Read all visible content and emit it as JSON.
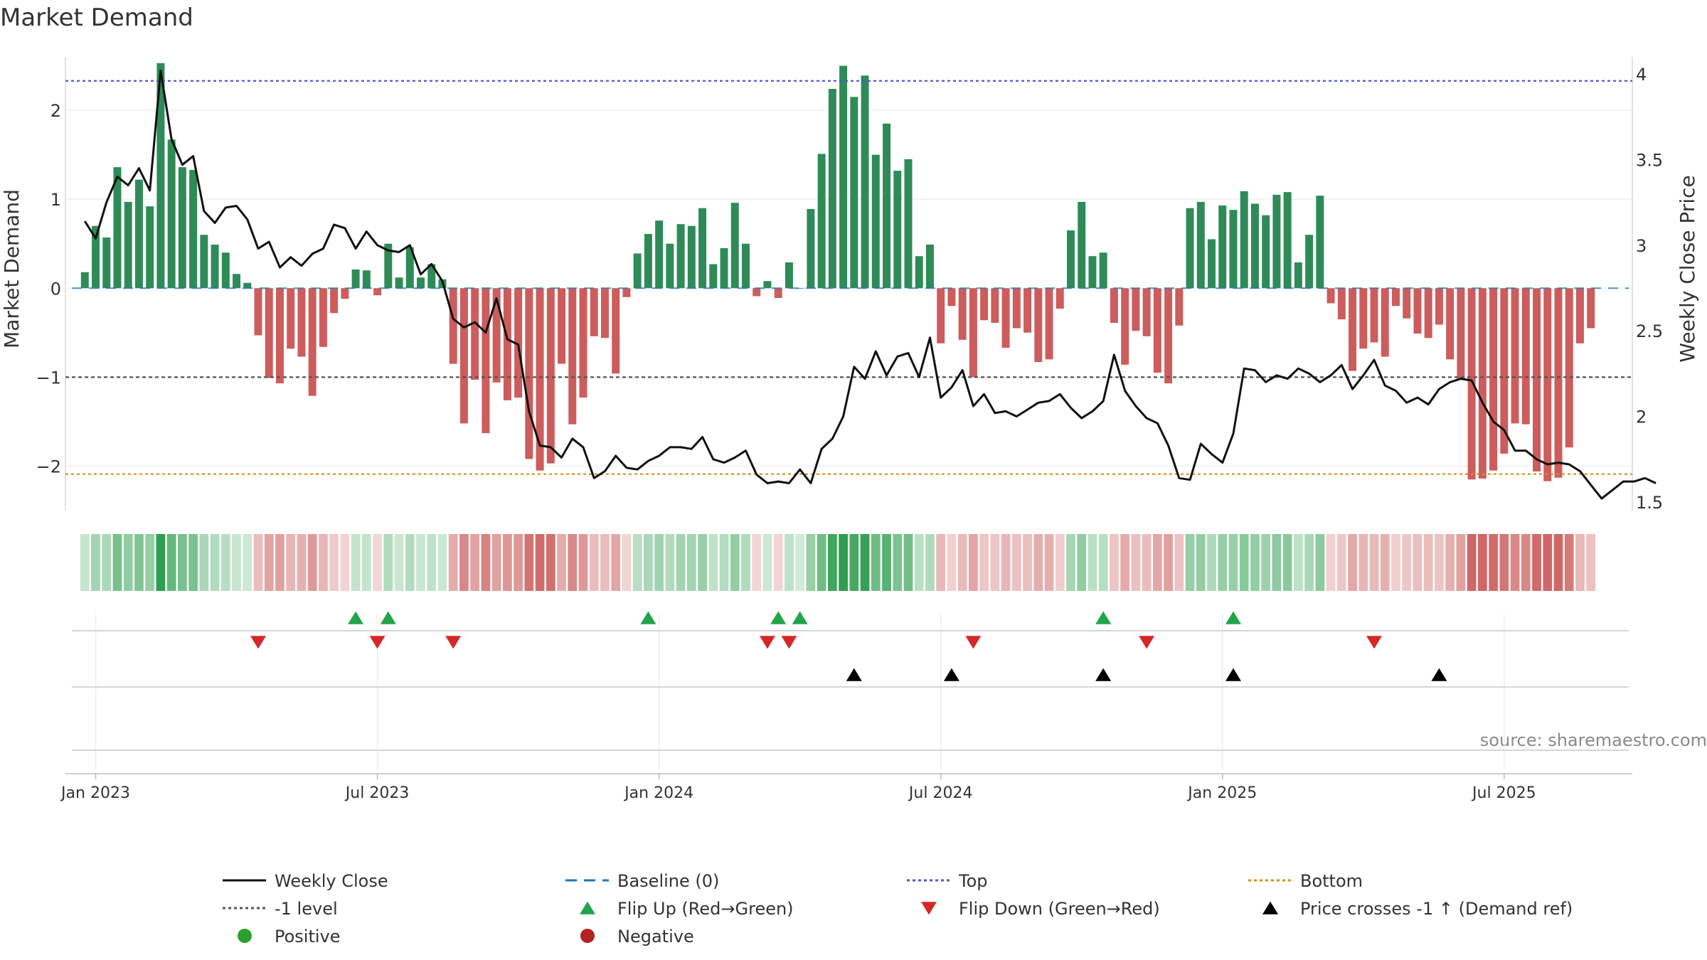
{
  "chart_data": {
    "type": "bar",
    "title": "Market Demand",
    "ylabel_left": "Market Demand",
    "ylabel_right": "Weekly Close Price",
    "left_ylim": [
      -2.5,
      2.6
    ],
    "left_yticks": [
      2,
      1,
      0,
      -1,
      -2
    ],
    "left_ytick_labels": [
      "2",
      "1",
      "0",
      "−1",
      "−2"
    ],
    "right_ylim": [
      1.45,
      4.1
    ],
    "right_yticks": [
      4,
      3.5,
      3,
      2.5,
      2,
      1.5
    ],
    "right_ytick_labels": [
      "4",
      "3.5",
      "3",
      "2.5",
      "2",
      "1.5"
    ],
    "x_ticks": [
      {
        "label": "Jan 2023",
        "week": 1
      },
      {
        "label": "Jul 2023",
        "week": 27
      },
      {
        "label": "Jan 2024",
        "week": 53
      },
      {
        "label": "Jul 2024",
        "week": 79
      },
      {
        "label": "Jan 2025",
        "week": 105
      },
      {
        "label": "Jul 2025",
        "week": 131
      }
    ],
    "x_range": [
      -1.2,
      142.5
    ],
    "reference_lines": {
      "top": 2.33,
      "bottom": -2.09,
      "level": -1,
      "baseline": 0
    },
    "colors": {
      "positive": "#2e8b57",
      "negative": "#cd5c5c",
      "close": "#111111",
      "top": "#5555cc",
      "bottom": "#d4901a",
      "level": "#555555",
      "baseline": "#1f77b4",
      "flip_up": "#22a44a",
      "flip_down": "#d62728",
      "cross": "#000000",
      "positive_dot": "#2ca02c",
      "negative_dot": "#b22222"
    },
    "demand": [
      0.18,
      0.7,
      0.57,
      1.36,
      0.97,
      1.22,
      0.92,
      2.53,
      1.67,
      1.36,
      1.33,
      0.6,
      0.49,
      0.4,
      0.16,
      0.06,
      -0.53,
      -1.01,
      -1.07,
      -0.68,
      -0.77,
      -1.21,
      -0.66,
      -0.28,
      -0.12,
      0.21,
      0.2,
      -0.08,
      0.5,
      0.12,
      0.46,
      0.12,
      0.27,
      0.1,
      -0.85,
      -1.52,
      -1.03,
      -1.63,
      -1.06,
      -1.26,
      -1.23,
      -1.92,
      -2.05,
      -1.97,
      -0.85,
      -1.53,
      -1.23,
      -0.54,
      -0.56,
      -0.96,
      -0.1,
      0.39,
      0.61,
      0.76,
      0.5,
      0.72,
      0.7,
      0.9,
      0.27,
      0.45,
      0.96,
      0.5,
      -0.09,
      0.08,
      -0.11,
      0.29,
      0.0,
      0.89,
      1.51,
      2.24,
      2.5,
      2.15,
      2.39,
      1.5,
      1.85,
      1.32,
      1.45,
      0.36,
      0.49,
      -0.62,
      -0.2,
      -0.58,
      -1.0,
      -0.36,
      -0.39,
      -0.67,
      -0.45,
      -0.5,
      -0.83,
      -0.8,
      -0.23,
      0.65,
      0.97,
      0.36,
      0.4,
      -0.39,
      -0.86,
      -0.48,
      -0.54,
      -0.95,
      -1.07,
      -0.42,
      0.9,
      0.97,
      0.55,
      0.93,
      0.88,
      1.09,
      0.95,
      0.82,
      1.05,
      1.08,
      0.29,
      0.6,
      1.04,
      -0.17,
      -0.35,
      -0.93,
      -0.68,
      -0.61,
      -0.77,
      -0.2,
      -0.34,
      -0.51,
      -0.56,
      -0.41,
      -0.8,
      -1.03,
      -2.15,
      -2.14,
      -2.05,
      -1.86,
      -1.52,
      -1.53,
      -2.06,
      -2.17,
      -2.13,
      -1.79,
      -0.62,
      -0.45
    ],
    "close": [
      3.14,
      3.04,
      3.25,
      3.4,
      3.35,
      3.45,
      3.32,
      4.02,
      3.62,
      3.47,
      3.52,
      3.2,
      3.13,
      3.22,
      3.23,
      3.15,
      2.98,
      3.02,
      2.87,
      2.93,
      2.88,
      2.95,
      2.98,
      3.12,
      3.1,
      2.98,
      3.08,
      3.0,
      2.97,
      2.96,
      3.0,
      2.83,
      2.89,
      2.79,
      2.57,
      2.52,
      2.55,
      2.49,
      2.69,
      2.45,
      2.42,
      2.03,
      1.83,
      1.82,
      1.76,
      1.87,
      1.82,
      1.64,
      1.68,
      1.77,
      1.7,
      1.69,
      1.74,
      1.77,
      1.82,
      1.82,
      1.81,
      1.88,
      1.75,
      1.73,
      1.76,
      1.8,
      1.66,
      1.61,
      1.62,
      1.61,
      1.69,
      1.61,
      1.81,
      1.87,
      2.0,
      2.29,
      2.22,
      2.38,
      2.24,
      2.35,
      2.37,
      2.23,
      2.46,
      2.11,
      2.17,
      2.27,
      2.06,
      2.13,
      2.02,
      2.03,
      2.0,
      2.04,
      2.08,
      2.09,
      2.13,
      2.05,
      1.99,
      2.03,
      2.09,
      2.36,
      2.15,
      2.06,
      1.99,
      1.96,
      1.83,
      1.64,
      1.63,
      1.84,
      1.78,
      1.73,
      1.9,
      2.28,
      2.27,
      2.2,
      2.24,
      2.22,
      2.28,
      2.25,
      2.2,
      2.24,
      2.3,
      2.16,
      2.24,
      2.33,
      2.18,
      2.15,
      2.08,
      2.11,
      2.07,
      2.16,
      2.2,
      2.22,
      2.21,
      2.08,
      1.97,
      1.92,
      1.8,
      1.8,
      1.75,
      1.72,
      1.73,
      1.72,
      1.68,
      1.6,
      1.52,
      1.57,
      1.62,
      1.62,
      1.64,
      1.61
    ],
    "flip_up_weeks": [
      25,
      28,
      52,
      64,
      66,
      94,
      106
    ],
    "flip_down_weeks": [
      16,
      27,
      34,
      63,
      65,
      82,
      98,
      119
    ],
    "cross_weeks": [
      71,
      80,
      94,
      106,
      125
    ],
    "legend": [
      {
        "label": "Weekly Close",
        "kind": "solid",
        "color_key": "close"
      },
      {
        "label": "Baseline (0)",
        "kind": "dash",
        "color_key": "baseline"
      },
      {
        "label": "Top",
        "kind": "dot",
        "color_key": "top"
      },
      {
        "label": "Bottom",
        "kind": "dot",
        "color_key": "bottom"
      },
      {
        "label": "-1 level",
        "kind": "dot",
        "color_key": "level"
      },
      {
        "label": "Flip Up (Red→Green)",
        "kind": "tri-up",
        "color_key": "flip_up"
      },
      {
        "label": "Flip Down (Green→Red)",
        "kind": "tri-down",
        "color_key": "flip_down"
      },
      {
        "label": "Price crosses -1 ↑ (Demand ref)",
        "kind": "tri-up",
        "color_key": "cross"
      },
      {
        "label": "Positive",
        "kind": "circle",
        "color_key": "positive_dot"
      },
      {
        "label": "Negative",
        "kind": "circle",
        "color_key": "negative_dot"
      }
    ],
    "source": "source: sharemaestro.com"
  }
}
